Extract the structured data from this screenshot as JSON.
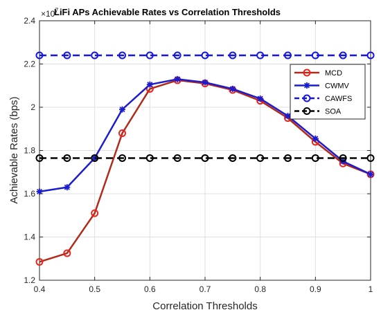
{
  "chart_data": {
    "type": "line",
    "title": "LiFi APs Achievable Rates vs Correlation Thresholds",
    "xlabel": "Correlation Thresholds",
    "ylabel": "Achievable Rates (bps)",
    "y_exponent_label": "×10",
    "y_exponent_power": "7",
    "xlim": [
      0.4,
      1.0
    ],
    "ylim": [
      1.2,
      2.4
    ],
    "grid": true,
    "legend_position": "top-right",
    "x_ticks": [
      "0.4",
      "0.5",
      "0.6",
      "0.7",
      "0.8",
      "0.9",
      "1"
    ],
    "y_ticks": [
      "1.2",
      "1.4",
      "1.6",
      "1.8",
      "2",
      "2.2",
      "2.4"
    ],
    "x": [
      0.4,
      0.45,
      0.5,
      0.55,
      0.6,
      0.65,
      0.7,
      0.75,
      0.8,
      0.85,
      0.9,
      0.95,
      1.0
    ],
    "series": [
      {
        "name": "MCD",
        "color": "#b22a1a",
        "marker": "circle",
        "marker_color": "#e8241e",
        "line_style": "solid",
        "values": [
          1.285,
          1.325,
          1.51,
          1.88,
          2.085,
          2.125,
          2.11,
          2.08,
          2.03,
          1.95,
          1.84,
          1.74,
          1.69
        ]
      },
      {
        "name": "CWMV",
        "color": "#1c1ccf",
        "marker": "star",
        "marker_color": "#1c1ccf",
        "line_style": "solid",
        "values": [
          1.61,
          1.63,
          1.765,
          1.99,
          2.105,
          2.13,
          2.115,
          2.085,
          2.04,
          1.96,
          1.855,
          1.75,
          1.69
        ]
      },
      {
        "name": "CAWFS",
        "color": "#1414e6",
        "marker": "circle",
        "marker_color": "#1414e6",
        "line_style": "dashed",
        "values": [
          2.24,
          2.24,
          2.24,
          2.24,
          2.24,
          2.24,
          2.24,
          2.24,
          2.24,
          2.24,
          2.24,
          2.24,
          2.24
        ]
      },
      {
        "name": "SOA",
        "color": "#000000",
        "marker": "circle",
        "marker_color": "#000000",
        "line_style": "dashed",
        "values": [
          1.765,
          1.765,
          1.765,
          1.765,
          1.765,
          1.765,
          1.765,
          1.765,
          1.765,
          1.765,
          1.765,
          1.765,
          1.765
        ]
      }
    ]
  }
}
